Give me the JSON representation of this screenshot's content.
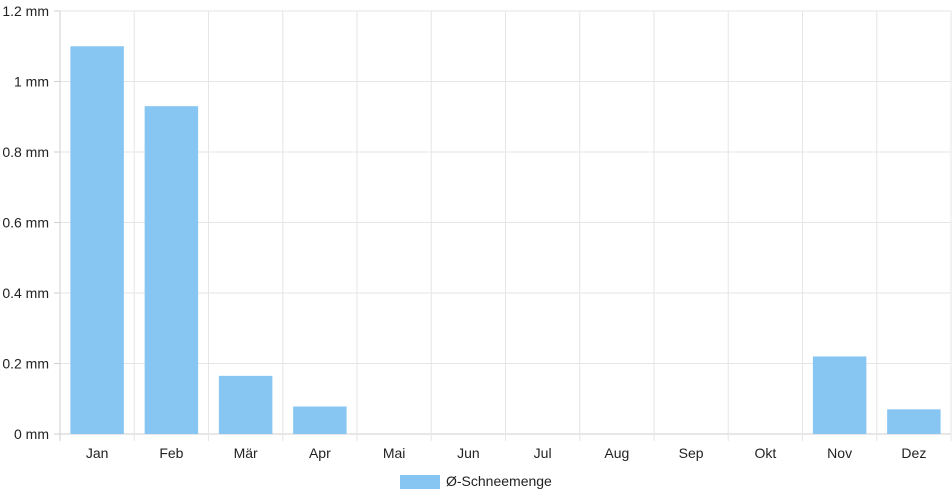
{
  "chart_data": {
    "type": "bar",
    "categories": [
      "Jan",
      "Feb",
      "Mär",
      "Apr",
      "Mai",
      "Jun",
      "Jul",
      "Aug",
      "Sep",
      "Okt",
      "Nov",
      "Dez"
    ],
    "series": [
      {
        "name": "Ø-Schneemenge",
        "values": [
          1.1,
          0.93,
          0.165,
          0.078,
          0,
          0,
          0,
          0,
          0,
          0,
          0.22,
          0.07
        ],
        "color": "#87c5f2"
      }
    ],
    "y_ticks": [
      "0 mm",
      "0.2 mm",
      "0.4 mm",
      "0.6 mm",
      "0.8 mm",
      "1 mm",
      "1.2 mm"
    ],
    "ylim": [
      0,
      1.2
    ],
    "grid": true,
    "legend_position": "bottom"
  }
}
